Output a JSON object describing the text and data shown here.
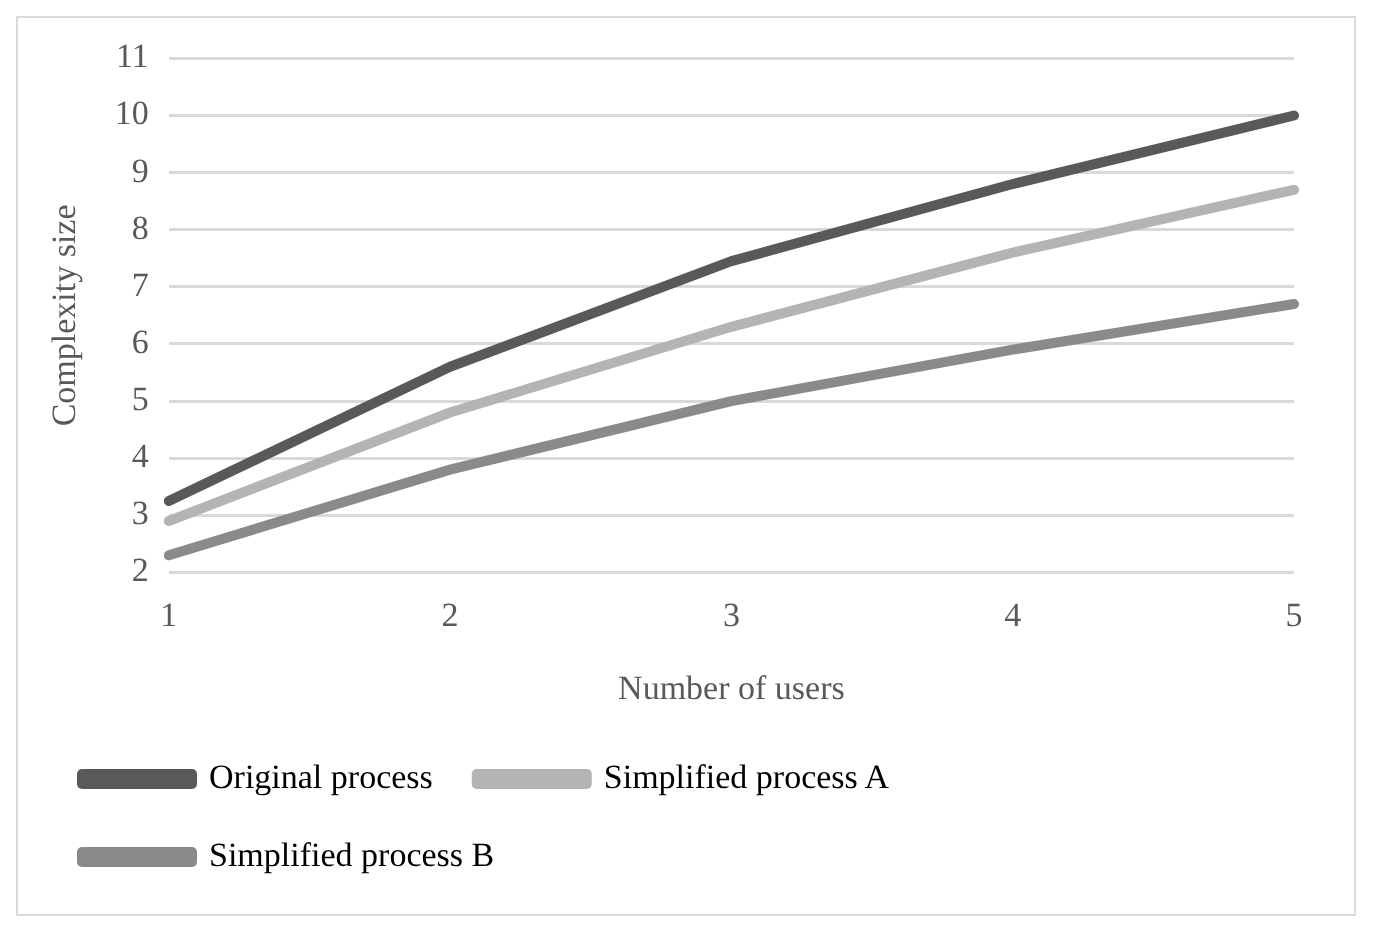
{
  "chart_data": {
    "type": "line",
    "xlabel": "Number of users",
    "ylabel": "Complexity size",
    "categories": [
      "1",
      "2",
      "3",
      "4",
      "5"
    ],
    "series": [
      {
        "name": "Original process",
        "color": "#595959",
        "values": [
          3.25,
          5.6,
          7.45,
          8.8,
          10.0
        ]
      },
      {
        "name": "Simplified process A",
        "color": "#b4b4b4",
        "values": [
          2.9,
          4.8,
          6.3,
          7.6,
          8.7
        ]
      },
      {
        "name": "Simplified process B",
        "color": "#8a8a8a",
        "values": [
          2.3,
          3.8,
          5.0,
          5.9,
          6.7
        ]
      }
    ],
    "ylim": [
      2,
      11
    ],
    "yticks": [
      2,
      3,
      4,
      5,
      6,
      7,
      8,
      9,
      10,
      11
    ],
    "grid": "y",
    "legend": "bottom",
    "marker": "none",
    "line_style": "solid"
  }
}
